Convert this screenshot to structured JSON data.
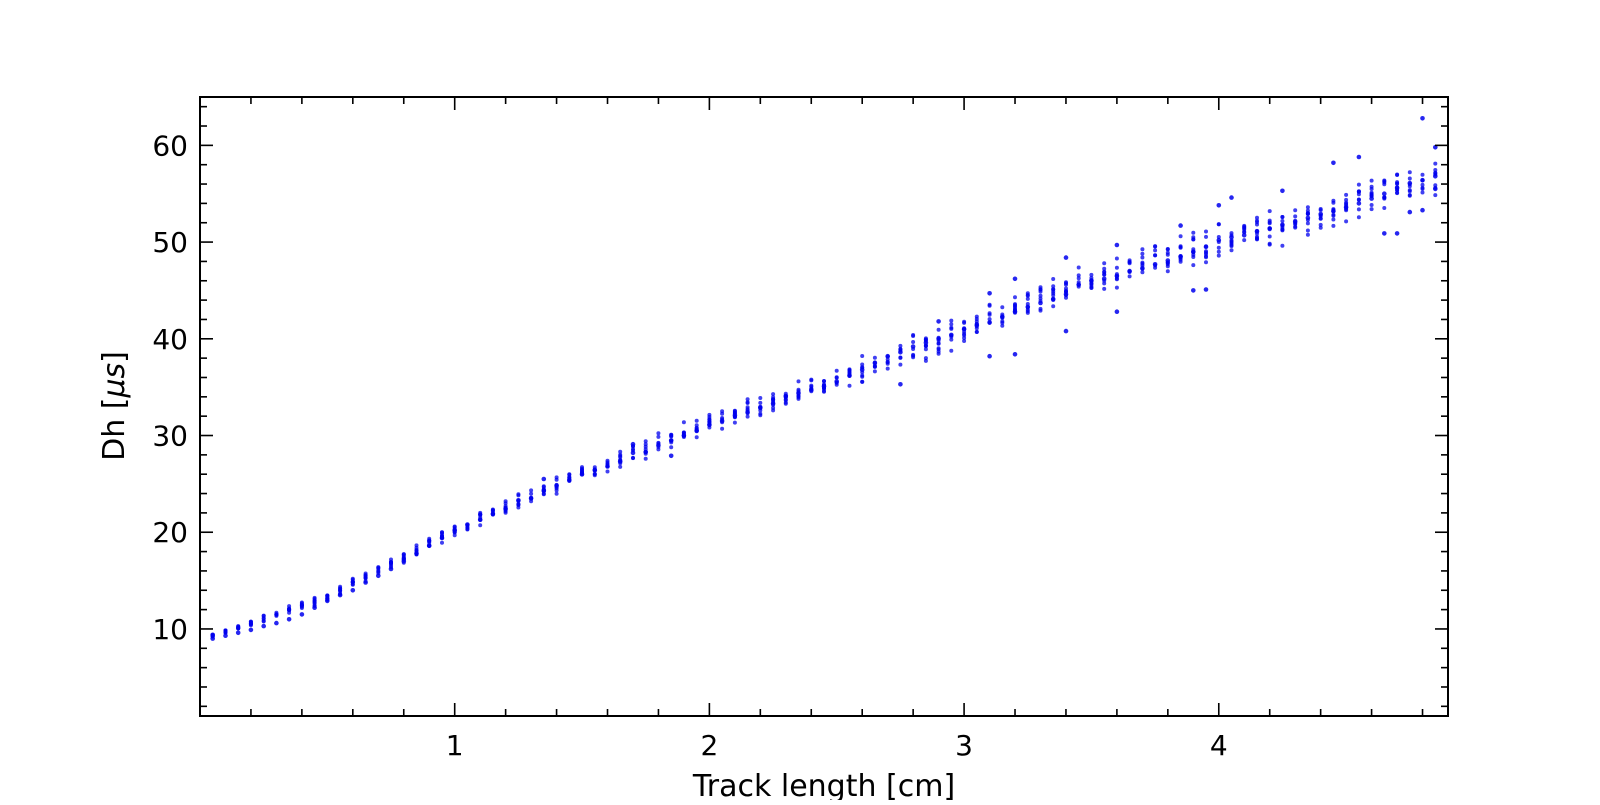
{
  "chart_data": {
    "type": "scatter",
    "title": "",
    "xlabel": "Track length [cm]",
    "ylabel_main": "Dh [",
    "ylabel_unit": "μs",
    "ylabel_close": "]",
    "xlim": [
      0.0,
      4.9
    ],
    "ylim": [
      1,
      65
    ],
    "x_ticks": [
      1,
      2,
      3,
      4
    ],
    "x_tick_labels": [
      "1",
      "2",
      "3",
      "4"
    ],
    "x_minor_step": 0.2,
    "y_ticks": [
      10,
      20,
      30,
      40,
      50,
      60
    ],
    "y_tick_labels": [
      "10",
      "20",
      "30",
      "40",
      "50",
      "60"
    ],
    "y_minor_step": 2,
    "grid": false,
    "legend": "none",
    "marker_color": "#0000ee",
    "series": [
      {
        "trend": [
          [
            0.0,
            8.8
          ],
          [
            0.5,
            13.3
          ],
          [
            1.0,
            20.2
          ],
          [
            1.5,
            26.1
          ],
          [
            2.0,
            31.3
          ],
          [
            2.5,
            35.6
          ],
          [
            3.0,
            41.0
          ],
          [
            3.5,
            46.0
          ],
          [
            4.0,
            50.2
          ],
          [
            4.5,
            53.6
          ],
          [
            4.9,
            57.2
          ]
        ],
        "x_spacing": 0.05,
        "spread_points": [
          [
            0.0,
            0.25
          ],
          [
            1.0,
            0.9
          ],
          [
            2.0,
            1.4
          ],
          [
            3.0,
            2.2
          ],
          [
            4.0,
            2.6
          ],
          [
            4.9,
            2.8
          ]
        ],
        "points": [
          [
            0.05,
            9.0
          ],
          [
            0.05,
            9.4
          ],
          [
            0.1,
            9.3
          ],
          [
            0.15,
            9.6
          ],
          [
            0.2,
            9.9
          ],
          [
            0.25,
            10.3
          ],
          [
            0.3,
            10.6
          ],
          [
            0.35,
            11.0
          ],
          [
            0.4,
            11.5
          ],
          [
            0.45,
            12.2
          ],
          [
            0.5,
            12.9
          ],
          [
            0.55,
            13.5
          ],
          [
            0.6,
            14.0
          ],
          [
            0.65,
            14.8
          ],
          [
            0.7,
            15.5
          ],
          [
            0.75,
            16.2
          ],
          [
            0.8,
            17.0
          ],
          [
            0.85,
            17.8
          ],
          [
            0.9,
            18.6
          ],
          [
            0.95,
            19.4
          ],
          [
            1.0,
            20.2
          ],
          [
            1.05,
            20.8
          ],
          [
            1.1,
            21.3
          ],
          [
            1.15,
            21.9
          ],
          [
            1.2,
            22.4
          ],
          [
            1.25,
            23.3
          ],
          [
            1.3,
            23.5
          ],
          [
            1.35,
            24.3
          ],
          [
            1.4,
            24.8
          ],
          [
            1.45,
            25.4
          ],
          [
            1.5,
            26.0
          ],
          [
            1.55,
            26.4
          ],
          [
            1.6,
            26.8
          ],
          [
            1.65,
            27.3
          ],
          [
            1.7,
            28.2
          ],
          [
            1.75,
            28.3
          ],
          [
            1.8,
            29.0
          ],
          [
            1.85,
            29.5
          ],
          [
            1.9,
            30.0
          ],
          [
            1.95,
            30.5
          ],
          [
            2.0,
            31.1
          ],
          [
            2.05,
            31.5
          ],
          [
            2.1,
            32.1
          ],
          [
            2.15,
            32.4
          ],
          [
            2.2,
            32.9
          ],
          [
            2.25,
            33.3
          ],
          [
            2.3,
            34.1
          ],
          [
            2.35,
            34.4
          ],
          [
            2.4,
            34.7
          ],
          [
            2.45,
            35.1
          ],
          [
            2.5,
            35.6
          ],
          [
            2.55,
            36.2
          ],
          [
            2.6,
            36.8
          ],
          [
            2.65,
            37.5
          ],
          [
            2.7,
            38.2
          ],
          [
            2.75,
            38.6
          ],
          [
            2.8,
            39.2
          ],
          [
            2.85,
            39.6
          ],
          [
            2.9,
            40.0
          ],
          [
            2.95,
            40.4
          ],
          [
            3.0,
            41.0
          ],
          [
            3.05,
            41.4
          ],
          [
            3.1,
            41.7
          ],
          [
            3.15,
            42.3
          ],
          [
            3.2,
            42.8
          ],
          [
            3.25,
            43.3
          ],
          [
            3.3,
            43.7
          ],
          [
            3.35,
            44.1
          ],
          [
            3.4,
            44.6
          ],
          [
            3.45,
            45.6
          ],
          [
            3.5,
            46.0
          ],
          [
            3.55,
            46.2
          ],
          [
            3.6,
            46.5
          ],
          [
            3.65,
            47.0
          ],
          [
            3.7,
            47.3
          ],
          [
            3.75,
            47.7
          ],
          [
            3.8,
            48.1
          ],
          [
            3.85,
            48.5
          ],
          [
            3.9,
            49.0
          ],
          [
            3.95,
            49.5
          ],
          [
            4.0,
            50.2
          ],
          [
            4.05,
            50.5
          ],
          [
            4.1,
            50.7
          ],
          [
            4.15,
            51.1
          ],
          [
            4.2,
            51.4
          ],
          [
            4.25,
            51.8
          ],
          [
            4.3,
            52.1
          ],
          [
            4.35,
            52.5
          ],
          [
            4.4,
            52.9
          ],
          [
            4.45,
            53.2
          ],
          [
            4.5,
            53.6
          ],
          [
            4.55,
            54.0
          ],
          [
            4.6,
            54.5
          ],
          [
            4.65,
            55.0
          ],
          [
            4.7,
            55.6
          ],
          [
            4.75,
            56.1
          ],
          [
            4.8,
            56.4
          ],
          [
            4.85,
            56.8
          ],
          [
            1.35,
            25.5
          ],
          [
            1.7,
            29.1
          ],
          [
            1.85,
            27.9
          ],
          [
            2.75,
            35.3
          ],
          [
            2.9,
            41.8
          ],
          [
            3.1,
            44.7
          ],
          [
            3.1,
            38.2
          ],
          [
            3.2,
            46.2
          ],
          [
            3.2,
            38.4
          ],
          [
            3.4,
            48.4
          ],
          [
            3.4,
            40.8
          ],
          [
            3.6,
            49.7
          ],
          [
            3.6,
            42.8
          ],
          [
            3.85,
            51.7
          ],
          [
            3.9,
            45.0
          ],
          [
            3.95,
            45.1
          ],
          [
            4.0,
            53.8
          ],
          [
            4.05,
            54.6
          ],
          [
            4.25,
            55.3
          ],
          [
            4.45,
            58.2
          ],
          [
            4.55,
            58.8
          ],
          [
            4.65,
            50.9
          ],
          [
            4.7,
            50.9
          ],
          [
            4.75,
            53.1
          ],
          [
            4.8,
            53.3
          ],
          [
            4.8,
            62.8
          ],
          [
            4.85,
            59.8
          ],
          [
            4.85,
            55.5
          ]
        ]
      }
    ]
  }
}
